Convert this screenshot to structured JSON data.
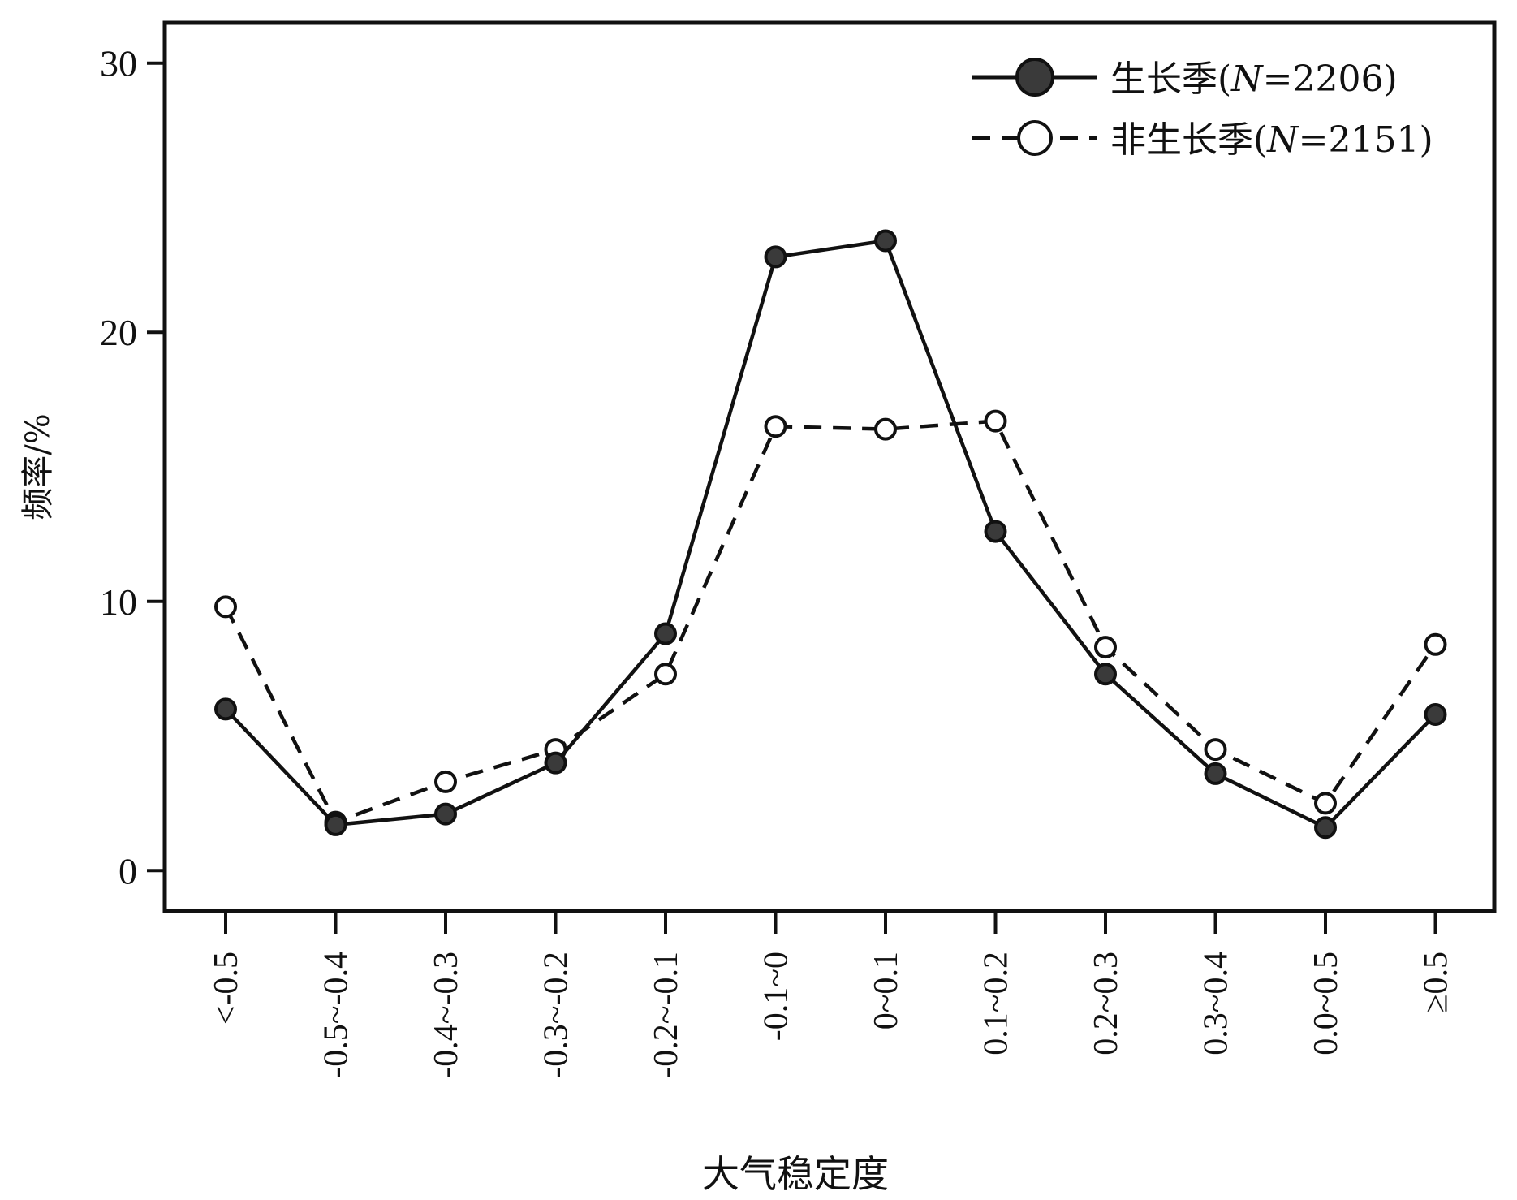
{
  "chart_data": {
    "type": "line",
    "categories": [
      "<-0.5",
      "-0.5~-0.4",
      "-0.4~-0.3",
      "-0.3~-0.2",
      "-0.2~-0.1",
      "-0.1~0",
      "0~0.1",
      "0.1~0.2",
      "0.2~0.3",
      "0.3~0.4",
      "0.0~0.5",
      "≥0.5"
    ],
    "series": [
      {
        "name": "生长季(N=2206)",
        "name_prefix": "生长季(",
        "name_n": "N",
        "name_suffix": "=2206)",
        "style": "solid",
        "marker": "filled-circle",
        "color": "#111111",
        "marker_fill": "#3a3a3a",
        "values": [
          6.0,
          1.7,
          2.1,
          4.0,
          8.8,
          22.8,
          23.4,
          12.6,
          7.3,
          3.6,
          1.6,
          5.8
        ]
      },
      {
        "name": "非生长季(N=2151)",
        "name_prefix": "非生长季(",
        "name_n": "N",
        "name_suffix": "=2151)",
        "style": "dashed",
        "marker": "open-circle",
        "color": "#111111",
        "marker_fill": "#ffffff",
        "values": [
          9.8,
          1.8,
          3.3,
          4.5,
          7.3,
          16.5,
          16.4,
          16.7,
          8.3,
          4.5,
          2.5,
          8.4
        ]
      }
    ],
    "yticks": [
      0,
      10,
      20,
      30
    ],
    "ylim": [
      -1.5,
      31.5
    ],
    "xlabel": "大气稳定度",
    "ylabel": "频率/%",
    "grid": false,
    "legend_position": "top-right"
  }
}
